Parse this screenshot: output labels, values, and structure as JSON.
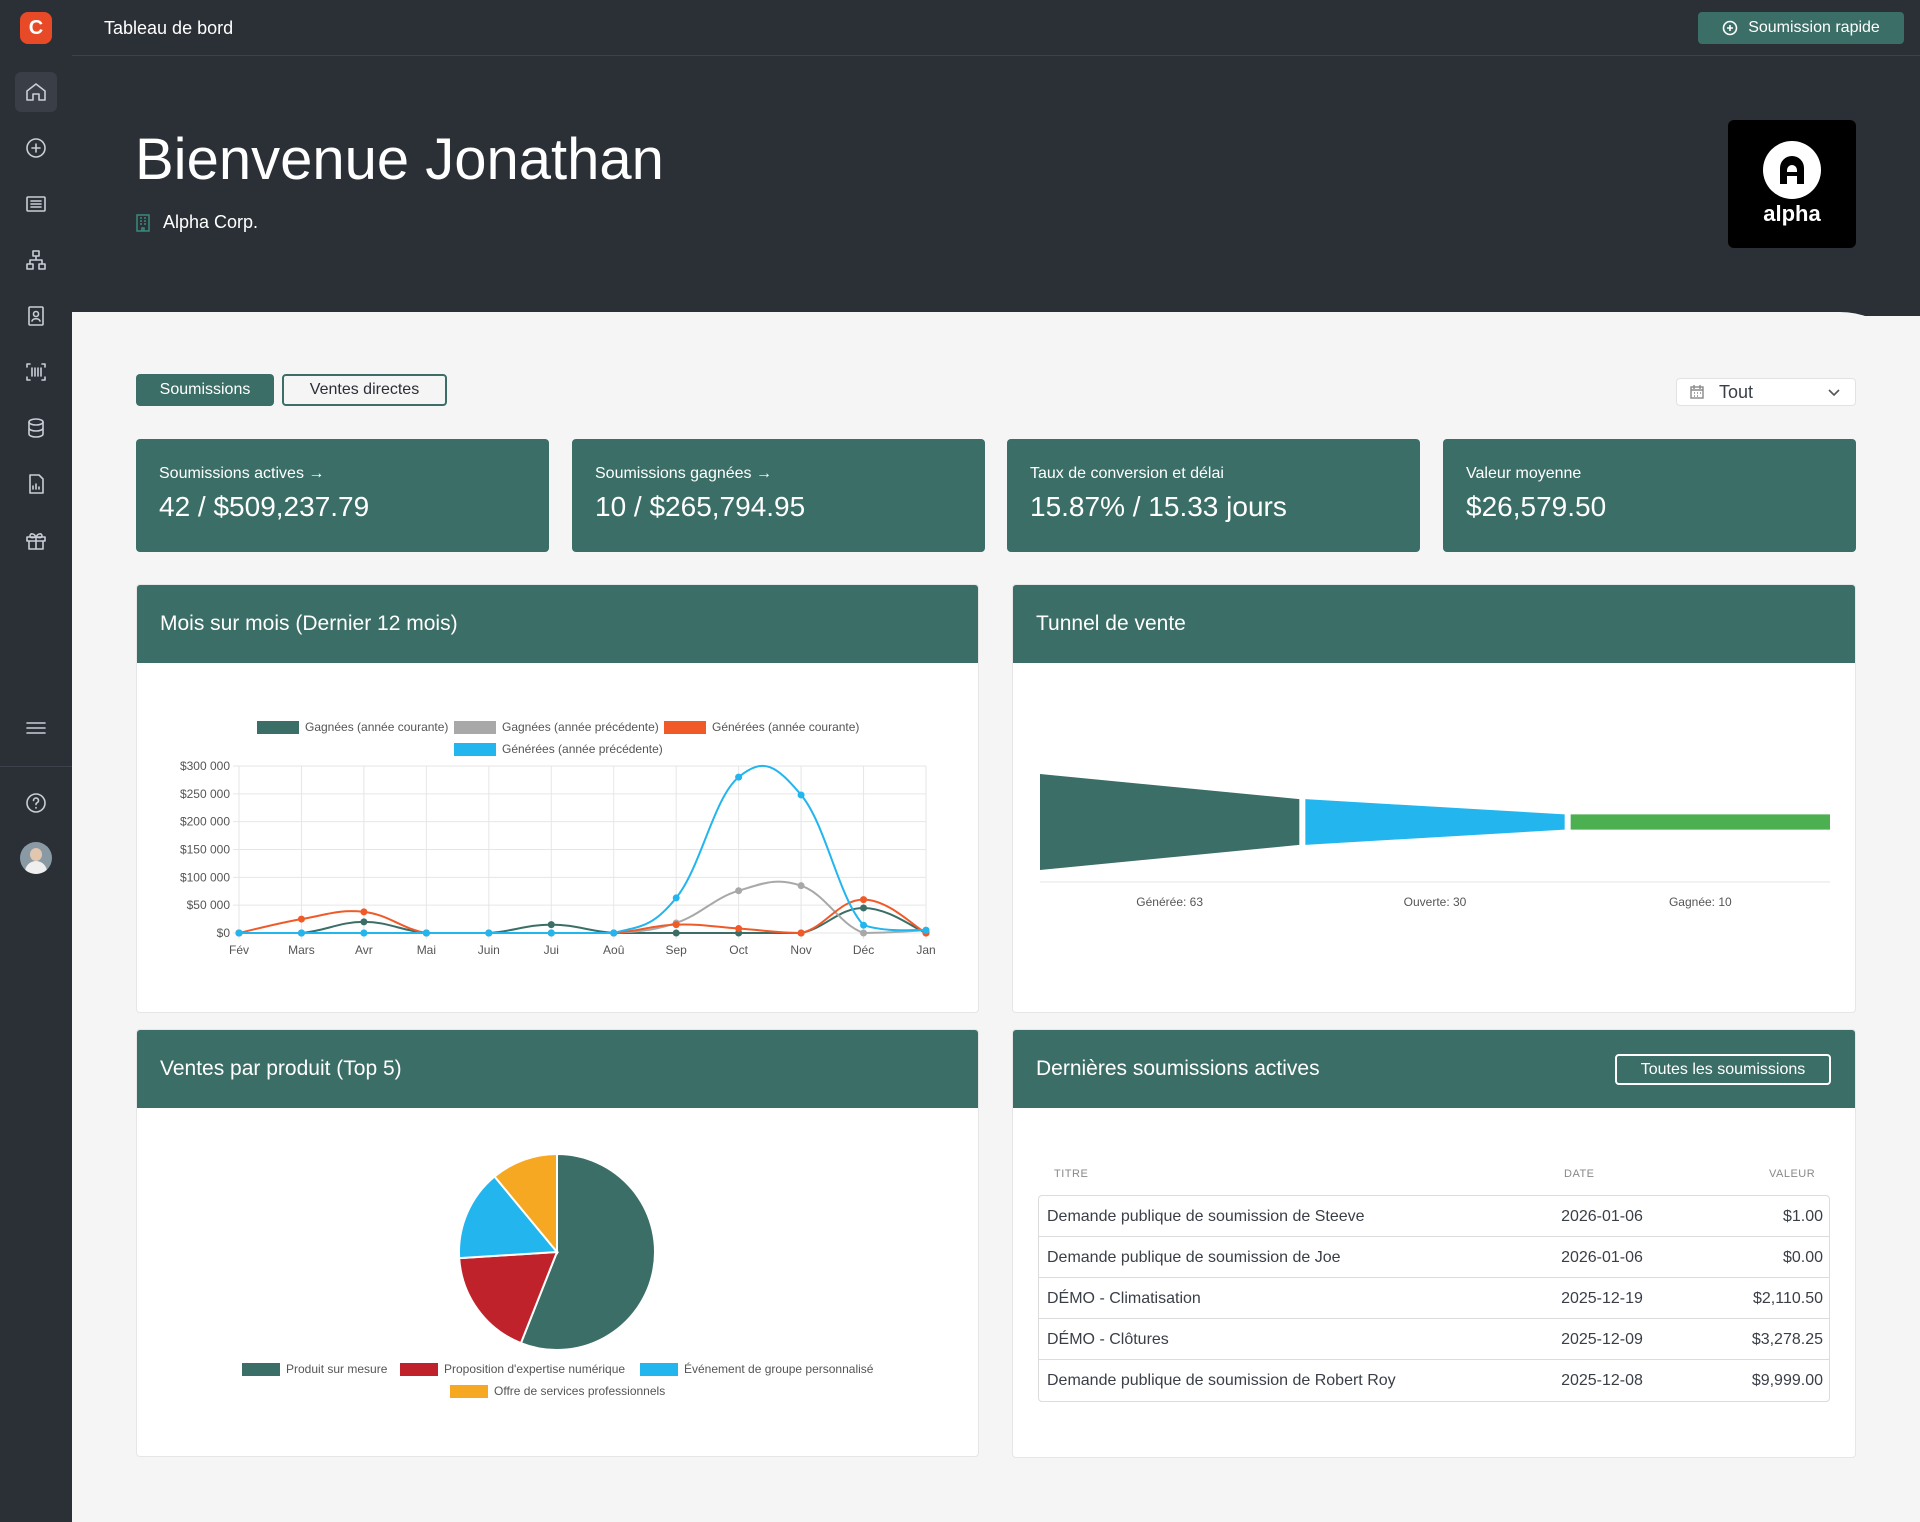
{
  "header": {
    "title": "Tableau de bord",
    "quick_button": "Soumission rapide"
  },
  "hero": {
    "welcome": "Bienvenue Jonathan",
    "company": "Alpha Corp.",
    "brand_name": "alpha"
  },
  "sidebar": {
    "items": [
      "home-icon",
      "plus-circle-icon",
      "list-icon",
      "sitemap-icon",
      "contact-icon",
      "barcode-icon",
      "database-icon",
      "report-icon",
      "gift-icon"
    ],
    "bottom": [
      "menu-icon",
      "help-icon",
      "avatar"
    ]
  },
  "toggles": {
    "active": "Soumissions",
    "secondary": "Ventes directes",
    "period": "Tout"
  },
  "kpis": [
    {
      "label": "Soumissions actives",
      "value": "42 / $509,237.79",
      "arrow": "→"
    },
    {
      "label": "Soumissions gagnées",
      "value": "10 / $265,794.95",
      "arrow": "→"
    },
    {
      "label": "Taux de conversion et délai",
      "value": "15.87% / 15.33 jours",
      "arrow": ""
    },
    {
      "label": "Valeur moyenne",
      "value": "$26,579.50",
      "arrow": ""
    }
  ],
  "cards": {
    "monthly": "Mois sur mois (Dernier 12 mois)",
    "funnel": "Tunnel de vente",
    "products": "Ventes par produit (Top 5)",
    "latest": "Dernières soumissions actives",
    "all_button": "Toutes les soumissions"
  },
  "chart_data": [
    {
      "type": "line",
      "categories": [
        "Fév",
        "Mars",
        "Avr",
        "Mai",
        "Juin",
        "Jui",
        "Aoû",
        "Sep",
        "Oct",
        "Nov",
        "Déc",
        "Jan"
      ],
      "ylim": [
        0,
        300000
      ],
      "yticks": [
        "$0",
        "$50 000",
        "$100 000",
        "$150 000",
        "$200 000",
        "$250 000",
        "$300 000"
      ],
      "series": [
        {
          "name": "Gagnées (année courante)",
          "color": "#3a6e66",
          "values": [
            0,
            0,
            20000,
            0,
            0,
            15000,
            0,
            0,
            0,
            0,
            45000,
            0
          ]
        },
        {
          "name": "Gagnées (année précédente)",
          "color": "#a8a8a8",
          "values": [
            0,
            0,
            0,
            0,
            0,
            0,
            0,
            18000,
            76000,
            85000,
            0,
            5000
          ]
        },
        {
          "name": "Générées (année courante)",
          "color": "#ef5a28",
          "values": [
            0,
            25000,
            38000,
            0,
            0,
            0,
            0,
            15000,
            8000,
            0,
            60000,
            0
          ]
        },
        {
          "name": "Générées (année précédente)",
          "color": "#22b5ee",
          "values": [
            0,
            0,
            0,
            0,
            0,
            0,
            0,
            63000,
            280000,
            248000,
            14000,
            5000
          ]
        }
      ]
    },
    {
      "type": "bar",
      "categories": [
        "Générée: 63",
        "Ouverte: 30",
        "Gagnée: 10"
      ],
      "values": [
        63,
        30,
        10
      ],
      "colors": [
        "#3a6e66",
        "#22b5ee",
        "#4caf50"
      ]
    },
    {
      "type": "pie",
      "categories": [
        "Produit sur mesure",
        "Proposition d'expertise numérique",
        "Événement de groupe personnalisé",
        "Offre de services professionnels"
      ],
      "values": [
        56,
        18,
        15,
        11
      ],
      "colors": [
        "#3a6e66",
        "#c0222b",
        "#22b5ee",
        "#f7a823"
      ]
    }
  ],
  "table": {
    "headers": [
      "TITRE",
      "DATE",
      "VALEUR"
    ],
    "rows": [
      {
        "title": "Demande publique de soumission de Steeve",
        "date": "2026-01-06",
        "value": "$1.00"
      },
      {
        "title": "Demande publique de soumission de Joe",
        "date": "2026-01-06",
        "value": "$0.00"
      },
      {
        "title": "DÉMO - Climatisation",
        "date": "2025-12-19",
        "value": "$2,110.50"
      },
      {
        "title": "DÉMO - Clôtures",
        "date": "2025-12-09",
        "value": "$3,278.25"
      },
      {
        "title": "Demande publique de soumission de Robert Roy",
        "date": "2025-12-08",
        "value": "$9,999.00"
      }
    ]
  }
}
